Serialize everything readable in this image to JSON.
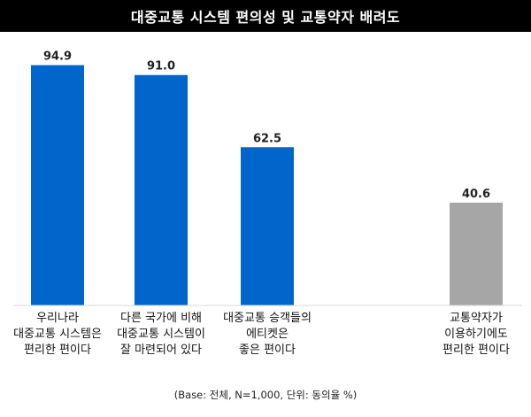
{
  "chart_data": {
    "type": "bar",
    "title": "대중교통 시스템 편의성 및 교통약자 배려도",
    "categories": [
      [
        "우리나라",
        "대중교통 시스템은",
        "편리한 편이다"
      ],
      [
        "다른 국가에 비해",
        "대중교통 시스템이",
        "잘 마련되어 있다"
      ],
      [
        "대중교통 승객들의",
        "에티켓은",
        "좋은 편이다"
      ],
      [
        "교통약자가",
        "이용하기에도",
        "편리한 편이다"
      ]
    ],
    "values": [
      94.9,
      91.0,
      62.5,
      40.6
    ],
    "value_labels": [
      "94.9",
      "91.0",
      "62.5",
      "40.6"
    ],
    "colors": [
      "#0066cc",
      "#0066cc",
      "#0066cc",
      "#a6a6a6"
    ],
    "ylim": [
      0,
      100
    ],
    "grid": false,
    "legend": "none",
    "note": "(Base: 전체, N=1,000, 단위: 동의율 %)"
  }
}
